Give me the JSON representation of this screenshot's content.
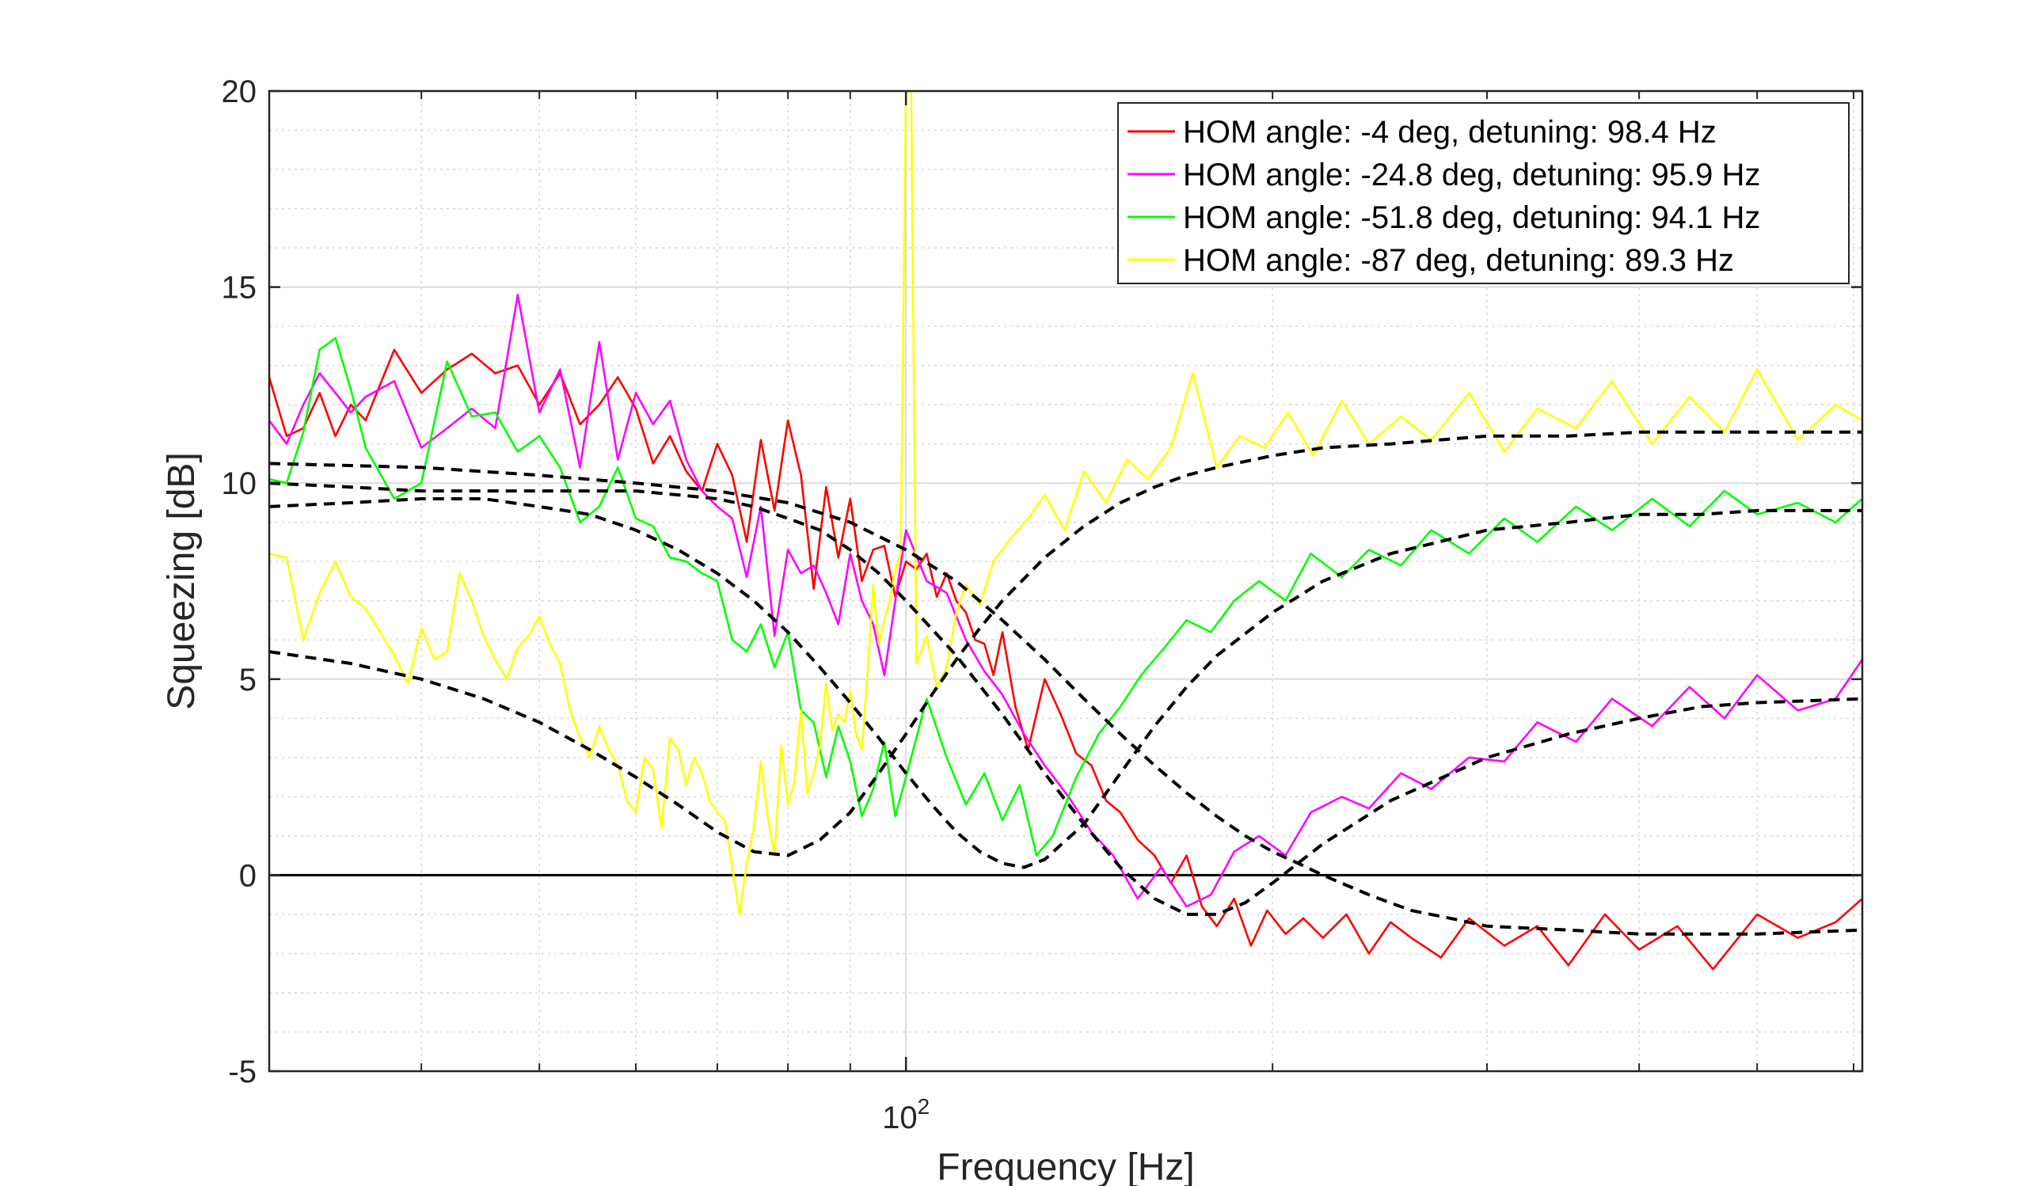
{
  "chart_data": {
    "type": "line",
    "xscale": "log",
    "xlim": [
      30,
      610
    ],
    "ylim": [
      -5,
      20
    ],
    "grid": true,
    "minor_grid": true,
    "xlabel": "Frequency [Hz]",
    "ylabel": "Squeezing [dB]",
    "xticks": [
      100
    ],
    "xtick_labels": [
      {
        "base": "10",
        "exp": "2"
      }
    ],
    "yticks": [
      -5,
      0,
      5,
      10,
      15,
      20
    ],
    "legend_position": "top-right",
    "series": [
      {
        "name": "HOM angle: -4 deg, detuning: 98.4 Hz",
        "color": "#ff0000",
        "x": [
          30,
          31,
          32,
          33,
          34,
          35,
          36,
          38,
          40,
          42,
          44,
          46,
          48,
          50,
          52,
          54,
          56,
          58,
          60,
          62,
          64,
          66,
          68,
          70,
          72,
          74,
          76,
          78,
          80,
          82,
          84,
          86,
          88,
          90,
          92,
          94,
          96,
          98,
          100,
          102,
          104,
          106,
          108,
          110,
          112,
          114,
          116,
          118,
          120,
          123,
          126,
          130,
          134,
          138,
          142,
          146,
          150,
          155,
          160,
          165,
          170,
          175,
          180,
          186,
          192,
          198,
          205,
          212,
          220,
          230,
          240,
          250,
          260,
          275,
          290,
          310,
          330,
          350,
          375,
          400,
          430,
          460,
          500,
          540,
          580,
          610
        ],
        "y": [
          12.7,
          11.2,
          11.4,
          12.3,
          11.2,
          12.0,
          11.6,
          13.4,
          12.3,
          12.9,
          13.3,
          12.8,
          13.0,
          12.0,
          12.8,
          11.5,
          12.0,
          12.7,
          11.9,
          10.5,
          11.2,
          10.3,
          9.8,
          11.0,
          10.2,
          8.5,
          11.1,
          9.3,
          11.6,
          10.2,
          7.3,
          9.9,
          8.1,
          9.6,
          7.5,
          8.3,
          8.4,
          7.1,
          8.0,
          7.8,
          8.2,
          7.1,
          7.7,
          7.0,
          6.7,
          6.0,
          5.9,
          5.1,
          6.2,
          4.3,
          3.2,
          5.0,
          4.1,
          3.1,
          2.8,
          1.9,
          1.6,
          0.9,
          0.5,
          -0.2,
          0.5,
          -0.8,
          -1.3,
          -0.6,
          -1.8,
          -0.9,
          -1.5,
          -1.1,
          -1.6,
          -1.0,
          -2.0,
          -1.2,
          -1.6,
          -2.1,
          -1.1,
          -1.8,
          -1.3,
          -2.3,
          -1.0,
          -1.9,
          -1.3,
          -2.4,
          -1.0,
          -1.6,
          -1.2,
          -0.6
        ]
      },
      {
        "name": "HOM angle: -24.8 deg, detuning: 95.9 Hz",
        "color": "#ff00ff",
        "x": [
          30,
          31,
          32,
          33,
          34,
          35,
          36,
          38,
          40,
          42,
          44,
          46,
          48,
          50,
          52,
          54,
          56,
          58,
          60,
          62,
          64,
          66,
          68,
          70,
          72,
          74,
          76,
          78,
          80,
          82,
          84,
          86,
          88,
          90,
          92,
          94,
          96,
          98,
          100,
          104,
          108,
          112,
          116,
          120,
          125,
          130,
          136,
          142,
          148,
          155,
          162,
          170,
          178,
          186,
          195,
          205,
          215,
          228,
          240,
          255,
          270,
          290,
          310,
          330,
          355,
          380,
          410,
          440,
          470,
          500,
          540,
          580,
          610
        ],
        "y": [
          11.6,
          11.0,
          12.0,
          12.8,
          12.3,
          11.8,
          12.2,
          12.6,
          10.9,
          11.4,
          11.9,
          11.4,
          14.8,
          11.8,
          12.9,
          10.4,
          13.6,
          10.6,
          12.3,
          11.5,
          12.1,
          10.6,
          9.8,
          9.4,
          9.1,
          7.6,
          9.4,
          6.1,
          8.3,
          7.7,
          7.9,
          7.2,
          6.4,
          8.2,
          7.0,
          6.4,
          5.1,
          7.0,
          8.8,
          7.5,
          7.2,
          6.0,
          5.2,
          4.6,
          3.6,
          2.8,
          2.0,
          1.1,
          0.5,
          -0.6,
          0.2,
          -0.8,
          -0.5,
          0.6,
          1.0,
          0.5,
          1.6,
          2.0,
          1.7,
          2.6,
          2.2,
          3.0,
          2.9,
          3.9,
          3.4,
          4.5,
          3.8,
          4.8,
          4.0,
          5.1,
          4.2,
          4.5,
          5.5
        ]
      },
      {
        "name": "HOM angle: -51.8 deg, detuning: 94.1 Hz",
        "color": "#00ff00",
        "x": [
          30,
          31,
          32,
          33,
          34,
          35,
          36,
          38,
          40,
          42,
          44,
          46,
          48,
          50,
          52,
          54,
          56,
          58,
          60,
          62,
          64,
          66,
          68,
          70,
          72,
          74,
          76,
          78,
          80,
          82,
          84,
          86,
          88,
          90,
          92,
          94,
          96,
          98,
          100,
          104,
          108,
          112,
          116,
          120,
          124,
          128,
          132,
          138,
          144,
          150,
          156,
          163,
          170,
          178,
          186,
          195,
          205,
          215,
          228,
          240,
          255,
          270,
          290,
          310,
          330,
          355,
          380,
          410,
          440,
          470,
          500,
          540,
          580,
          610
        ],
        "y": [
          10.1,
          10.0,
          11.3,
          13.4,
          13.7,
          12.4,
          10.9,
          9.6,
          10.0,
          13.1,
          11.7,
          11.8,
          10.8,
          11.2,
          10.4,
          9.0,
          9.4,
          10.4,
          9.1,
          8.9,
          8.1,
          8.0,
          7.7,
          7.5,
          6.0,
          5.7,
          6.4,
          5.3,
          6.2,
          4.2,
          3.9,
          2.5,
          3.8,
          2.9,
          1.5,
          2.2,
          3.4,
          1.5,
          2.5,
          4.5,
          3.0,
          1.8,
          2.6,
          1.4,
          2.3,
          0.5,
          1.0,
          2.5,
          3.6,
          4.3,
          5.1,
          5.8,
          6.5,
          6.2,
          7.0,
          7.5,
          7.0,
          8.2,
          7.6,
          8.3,
          7.9,
          8.8,
          8.2,
          9.1,
          8.5,
          9.4,
          8.8,
          9.6,
          8.9,
          9.8,
          9.2,
          9.5,
          9.0,
          9.6
        ]
      },
      {
        "name": "HOM angle: -87 deg, detuning: 89.3 Hz",
        "color": "#ffff00",
        "x": [
          30,
          31,
          32,
          33,
          34,
          35,
          36,
          37,
          38,
          39,
          40,
          41,
          42,
          43,
          44,
          45,
          46,
          47,
          48,
          49,
          50,
          51,
          52,
          53,
          54,
          55,
          56,
          57,
          58,
          59,
          60,
          61,
          62,
          63,
          64,
          65,
          66,
          67,
          68,
          69,
          70,
          71,
          72,
          73,
          74,
          75,
          76,
          77,
          78,
          79,
          80,
          81,
          82,
          83,
          84,
          85,
          86,
          87,
          88,
          89,
          90,
          91,
          92,
          93,
          94,
          95,
          96,
          97,
          98,
          99,
          100,
          101,
          102,
          104,
          106,
          108,
          110,
          112,
          115,
          118,
          122,
          126,
          130,
          135,
          140,
          146,
          152,
          158,
          165,
          172,
          180,
          188,
          197,
          206,
          216,
          228,
          240,
          255,
          270,
          290,
          310,
          330,
          355,
          380,
          410,
          440,
          470,
          500,
          540,
          580,
          610
        ],
        "y": [
          8.2,
          8.1,
          6.0,
          7.2,
          8.0,
          7.1,
          6.8,
          6.2,
          5.6,
          4.9,
          6.3,
          5.5,
          5.7,
          7.7,
          7.0,
          6.1,
          5.5,
          5.0,
          5.8,
          6.1,
          6.6,
          5.9,
          5.4,
          4.2,
          3.5,
          3.0,
          3.8,
          3.2,
          2.8,
          1.9,
          1.6,
          3.0,
          2.7,
          1.2,
          3.5,
          3.2,
          2.3,
          3.0,
          2.6,
          1.9,
          1.6,
          1.4,
          0.2,
          -1.0,
          0.3,
          1.2,
          2.9,
          1.5,
          0.5,
          3.3,
          1.8,
          2.4,
          4.2,
          2.1,
          2.6,
          3.3,
          4.9,
          3.7,
          4.1,
          3.9,
          4.7,
          3.6,
          3.2,
          5.2,
          7.4,
          5.9,
          6.5,
          7.0,
          7.8,
          8.2,
          20.0,
          20.0,
          5.4,
          6.1,
          4.8,
          5.3,
          6.7,
          7.4,
          6.9,
          8.0,
          8.6,
          9.1,
          9.7,
          8.8,
          10.3,
          9.5,
          10.6,
          10.1,
          10.9,
          12.8,
          10.4,
          11.2,
          10.9,
          11.8,
          10.7,
          12.1,
          11.0,
          11.7,
          11.1,
          12.3,
          10.8,
          11.9,
          11.4,
          12.6,
          11.0,
          12.2,
          11.3,
          12.9,
          11.1,
          12.0,
          11.6
        ]
      }
    ],
    "models": [
      {
        "x": [
          30,
          40,
          50,
          60,
          70,
          80,
          90,
          100,
          110,
          120,
          130,
          140,
          150,
          160,
          170,
          180,
          190,
          200,
          210,
          220,
          240,
          260,
          280,
          300,
          350,
          400,
          450,
          500,
          610
        ],
        "y": [
          10.5,
          10.4,
          10.2,
          10.0,
          9.8,
          9.5,
          9.0,
          8.3,
          7.5,
          6.5,
          5.5,
          4.5,
          3.6,
          2.8,
          2.1,
          1.5,
          1.0,
          0.6,
          0.3,
          0.0,
          -0.5,
          -0.9,
          -1.1,
          -1.3,
          -1.4,
          -1.5,
          -1.5,
          -1.5,
          -1.4
        ]
      },
      {
        "x": [
          30,
          35,
          40,
          45,
          50,
          55,
          60,
          65,
          70,
          75,
          80,
          85,
          90,
          95,
          100,
          110,
          120,
          130,
          140,
          150,
          160,
          170,
          180,
          190,
          200,
          220,
          250,
          300,
          350,
          400,
          450,
          500,
          610
        ],
        "y": [
          10.0,
          9.9,
          9.8,
          9.8,
          9.8,
          9.8,
          9.8,
          9.7,
          9.6,
          9.4,
          9.1,
          8.8,
          8.3,
          7.7,
          7.0,
          5.6,
          4.1,
          2.6,
          1.3,
          0.2,
          -0.6,
          -1.0,
          -1.0,
          -0.7,
          -0.2,
          0.8,
          1.9,
          3.0,
          3.6,
          4.0,
          4.3,
          4.4,
          4.5
        ]
      },
      {
        "x": [
          30,
          35,
          40,
          45,
          50,
          55,
          60,
          65,
          70,
          75,
          80,
          85,
          90,
          95,
          100,
          105,
          110,
          115,
          120,
          125,
          130,
          140,
          150,
          160,
          170,
          180,
          200,
          220,
          250,
          300,
          350,
          400,
          450,
          500,
          610
        ],
        "y": [
          9.4,
          9.5,
          9.6,
          9.6,
          9.4,
          9.2,
          8.8,
          8.3,
          7.7,
          7.0,
          6.2,
          5.3,
          4.4,
          3.5,
          2.6,
          1.8,
          1.1,
          0.6,
          0.3,
          0.2,
          0.4,
          1.3,
          2.6,
          3.8,
          4.8,
          5.6,
          6.7,
          7.5,
          8.2,
          8.8,
          9.0,
          9.2,
          9.2,
          9.3,
          9.3
        ]
      },
      {
        "x": [
          30,
          35,
          40,
          45,
          50,
          55,
          60,
          65,
          70,
          75,
          80,
          85,
          90,
          95,
          100,
          105,
          110,
          115,
          120,
          130,
          140,
          150,
          160,
          170,
          180,
          200,
          220,
          250,
          300,
          350,
          400,
          450,
          500,
          610
        ],
        "y": [
          5.7,
          5.4,
          5.0,
          4.5,
          3.9,
          3.2,
          2.5,
          1.8,
          1.1,
          0.6,
          0.5,
          0.9,
          1.6,
          2.6,
          3.6,
          4.6,
          5.5,
          6.3,
          7.0,
          8.1,
          8.9,
          9.5,
          9.9,
          10.2,
          10.4,
          10.7,
          10.9,
          11.0,
          11.2,
          11.2,
          11.3,
          11.3,
          11.3,
          11.3
        ]
      }
    ]
  }
}
